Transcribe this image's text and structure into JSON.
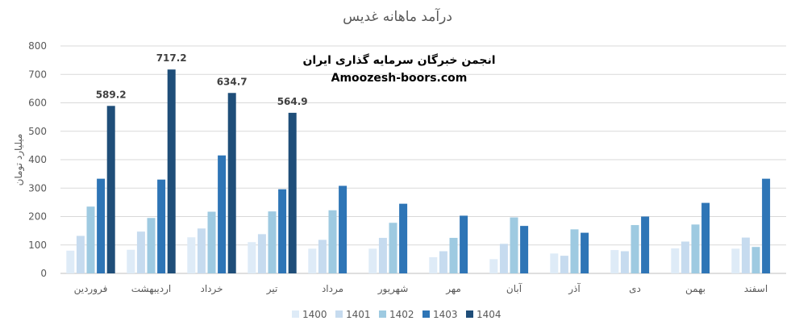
{
  "chart_data": {
    "type": "bar",
    "title": "درآمد ماهانه غدیس",
    "ylabel": "میلیارد تومان",
    "ylim": [
      0,
      800
    ],
    "yticks": [
      0,
      100,
      200,
      300,
      400,
      500,
      600,
      700,
      800
    ],
    "grid": true,
    "legend_position": "bottom",
    "categories": [
      "فروردین",
      "اردیبهشت",
      "خرداد",
      "تیر",
      "مرداد",
      "شهریور",
      "مهر",
      "آبان",
      "آذر",
      "دی",
      "بهمن",
      "اسفند"
    ],
    "series": [
      {
        "name": "1400",
        "color": "#deebf7",
        "values": [
          80,
          83,
          127,
          110,
          87,
          87,
          57,
          50,
          70,
          82,
          88,
          87
        ]
      },
      {
        "name": "1401",
        "color": "#c6dbef",
        "values": [
          132,
          147,
          158,
          138,
          118,
          125,
          78,
          104,
          62,
          78,
          112,
          126
        ]
      },
      {
        "name": "1402",
        "color": "#9ecae1",
        "values": [
          235,
          195,
          217,
          218,
          222,
          178,
          125,
          197,
          155,
          170,
          172,
          93
        ]
      },
      {
        "name": "1403",
        "color": "#2e75b6",
        "values": [
          333,
          330,
          415,
          296,
          308,
          245,
          203,
          167,
          143,
          200,
          248,
          333
        ]
      },
      {
        "name": "1404",
        "color": "#1f4e79",
        "values": [
          589.2,
          717.2,
          634.7,
          564.9,
          null,
          null,
          null,
          null,
          null,
          null,
          null,
          null
        ]
      }
    ],
    "data_labels": [
      "589.2",
      "717.2",
      "634.7",
      "564.9"
    ]
  },
  "watermark": {
    "line1": "انجمن خبرگان سرمایه گذاری ایران",
    "line2": "Amoozesh-boors.com"
  }
}
